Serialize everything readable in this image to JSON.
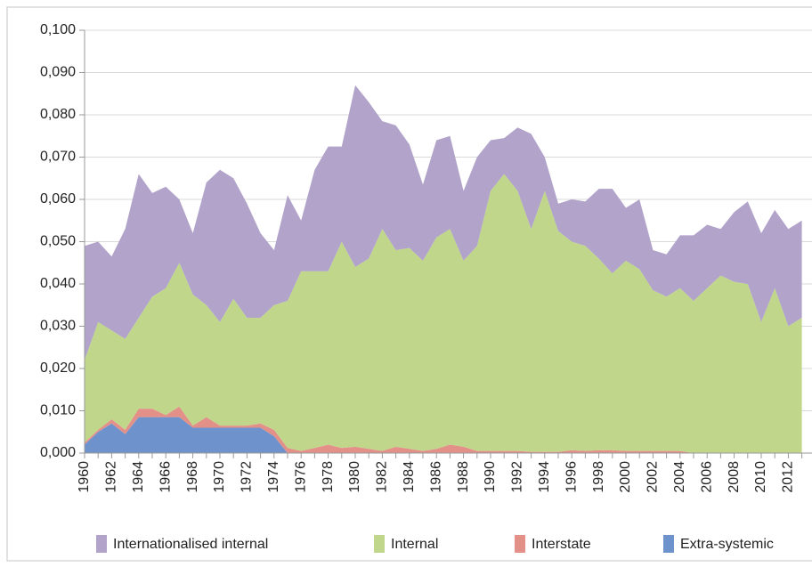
{
  "chart_data": {
    "type": "stacked-area",
    "categories": [
      "1960",
      null,
      "1962",
      null,
      "1964",
      null,
      "1966",
      null,
      "1968",
      null,
      "1970",
      null,
      "1972",
      null,
      "1974",
      null,
      "1976",
      null,
      "1978",
      null,
      "1980",
      null,
      "1982",
      null,
      "1984",
      null,
      "1986",
      null,
      "1988",
      null,
      "1990",
      null,
      "1992",
      null,
      "1994",
      null,
      "1996",
      null,
      "1998",
      null,
      "2000",
      null,
      "2002",
      null,
      "2004",
      null,
      "2006",
      null,
      "2008",
      null,
      "2010",
      null,
      "2012",
      null
    ],
    "series": [
      {
        "name": "Internationalised internal",
        "color": "#b1a3c9",
        "values": [
          0.027,
          0.019,
          0.0175,
          0.026,
          0.034,
          0.0245,
          0.024,
          0.015,
          0.0145,
          0.029,
          0.036,
          0.0285,
          0.027,
          0.02,
          0.013,
          0.025,
          0.012,
          0.024,
          0.0295,
          0.0225,
          0.043,
          0.037,
          0.0255,
          0.0295,
          0.0245,
          0.018,
          0.023,
          0.022,
          0.0165,
          0.021,
          0.012,
          0.0085,
          0.015,
          0.0225,
          0.008,
          0.0065,
          0.01,
          0.0105,
          0.0165,
          0.02,
          0.0125,
          0.0165,
          0.0095,
          0.01,
          0.0125,
          0.0155,
          0.015,
          0.011,
          0.0165,
          0.0195,
          0.021,
          0.0185,
          0.023,
          0.023
        ]
      },
      {
        "name": "Internal",
        "color": "#c0d78b",
        "values": [
          0.0195,
          0.0255,
          0.021,
          0.0215,
          0.0215,
          0.0265,
          0.03,
          0.034,
          0.031,
          0.0265,
          0.0245,
          0.03,
          0.0255,
          0.025,
          0.0295,
          0.0348,
          0.0425,
          0.0418,
          0.041,
          0.0488,
          0.0425,
          0.045,
          0.0525,
          0.0465,
          0.0475,
          0.045,
          0.05,
          0.051,
          0.044,
          0.0485,
          0.0615,
          0.0655,
          0.0615,
          0.0527,
          0.0617,
          0.0522,
          0.0493,
          0.0485,
          0.0453,
          0.0418,
          0.045,
          0.043,
          0.038,
          0.0365,
          0.0385,
          0.036,
          0.039,
          0.042,
          0.0405,
          0.04,
          0.031,
          0.039,
          0.03,
          0.032
        ]
      },
      {
        "name": "Interstate",
        "color": "#e39089",
        "values": [
          0.0005,
          0.0005,
          0.001,
          0.001,
          0.002,
          0.002,
          0.0005,
          0.0025,
          0.0005,
          0.0025,
          0.0005,
          0.0005,
          0.0005,
          0.001,
          0.0015,
          0.0012,
          0.0005,
          0.0012,
          0.002,
          0.0012,
          0.0015,
          0.001,
          0.0005,
          0.0015,
          0.001,
          0.0005,
          0.001,
          0.002,
          0.0015,
          0.0005,
          0.0005,
          0.0005,
          0.0005,
          0.0003,
          0.0003,
          0.0003,
          0.0007,
          0.0005,
          0.0007,
          0.0007,
          0.0005,
          0.0005,
          0.0005,
          0.0005,
          0.0005,
          0,
          0,
          0,
          0,
          0,
          0,
          0,
          0,
          0
        ]
      },
      {
        "name": "Extra-systemic",
        "color": "#6e93cc",
        "values": [
          0.002,
          0.005,
          0.007,
          0.0045,
          0.0085,
          0.0085,
          0.0085,
          0.0085,
          0.006,
          0.006,
          0.006,
          0.006,
          0.006,
          0.006,
          0.004,
          0,
          0,
          0,
          0,
          0,
          0,
          0,
          0,
          0,
          0,
          0,
          0,
          0,
          0,
          0,
          0,
          0,
          0,
          0,
          0,
          0,
          0,
          0,
          0,
          0,
          0,
          0,
          0,
          0,
          0,
          0,
          0,
          0,
          0,
          0,
          0,
          0,
          0,
          0
        ]
      }
    ],
    "ylim": [
      0,
      0.1
    ],
    "yticks": [
      {
        "value": 0,
        "label": "0,000"
      },
      {
        "value": 0.01,
        "label": "0,010"
      },
      {
        "value": 0.02,
        "label": "0,020"
      },
      {
        "value": 0.03,
        "label": "0,030"
      },
      {
        "value": 0.04,
        "label": "0,040"
      },
      {
        "value": 0.05,
        "label": "0,050"
      },
      {
        "value": 0.06,
        "label": "0,060"
      },
      {
        "value": 0.07,
        "label": "0,070"
      },
      {
        "value": 0.08,
        "label": "0,080"
      },
      {
        "value": 0.09,
        "label": "0,090"
      },
      {
        "value": 0.1,
        "label": "0,100"
      }
    ],
    "grid": true,
    "legend": "bottom"
  }
}
